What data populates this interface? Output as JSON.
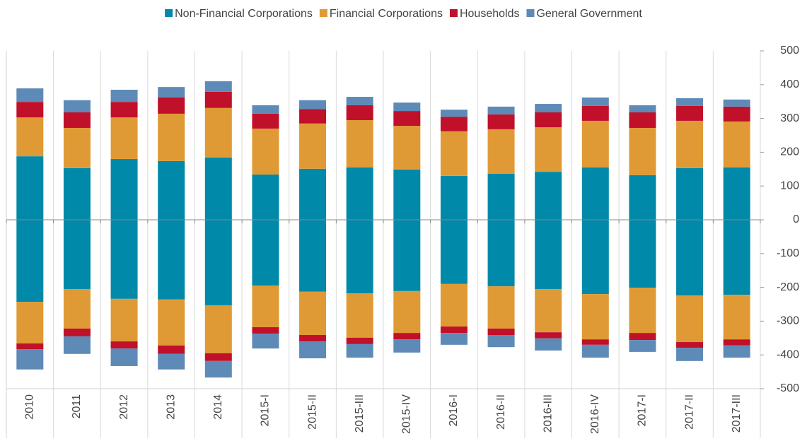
{
  "chart_data": {
    "type": "bar",
    "stacked": true,
    "categories": [
      "2010",
      "2011",
      "2012",
      "2013",
      "2014",
      "2015-I",
      "2015-II",
      "2015-III",
      "2015-IV",
      "2016-I",
      "2016-II",
      "2016-III",
      "2016-IV",
      "2017-I",
      "2017-II",
      "2017-III"
    ],
    "series": [
      {
        "name": "Non-Financial Corporations",
        "color": "#0089a8",
        "values": [
          188,
          153,
          180,
          174,
          184,
          134,
          151,
          155,
          149,
          130,
          136,
          142,
          155,
          132,
          153,
          155
        ],
        "values_neg": [
          -243,
          -205,
          -234,
          -236,
          -253,
          -195,
          -213,
          -218,
          -211,
          -190,
          -197,
          -205,
          -220,
          -201,
          -224,
          -222
        ]
      },
      {
        "name": "Financial Corporations",
        "color": "#e09a35",
        "values": [
          115,
          119,
          123,
          140,
          147,
          136,
          134,
          140,
          129,
          132,
          132,
          132,
          138,
          140,
          140,
          136
        ],
        "values_neg": [
          -123,
          -117,
          -126,
          -136,
          -142,
          -123,
          -128,
          -131,
          -124,
          -126,
          -125,
          -128,
          -134,
          -134,
          -138,
          -132
        ]
      },
      {
        "name": "Households",
        "color": "#c0102a",
        "values": [
          46,
          46,
          46,
          48,
          48,
          44,
          43,
          44,
          44,
          43,
          44,
          44,
          44,
          46,
          44,
          44
        ],
        "values_neg": [
          -17,
          -23,
          -21,
          -25,
          -23,
          -19,
          -19,
          -19,
          -19,
          -19,
          -19,
          -18,
          -16,
          -21,
          -17,
          -18
        ]
      },
      {
        "name": "General Government",
        "color": "#5e8ab8",
        "values": [
          40,
          36,
          36,
          31,
          31,
          25,
          26,
          25,
          25,
          21,
          23,
          25,
          25,
          21,
          23,
          21
        ],
        "values_neg": [
          -60,
          -52,
          -52,
          -46,
          -49,
          -44,
          -50,
          -40,
          -39,
          -35,
          -36,
          -36,
          -38,
          -35,
          -39,
          -36
        ]
      }
    ],
    "ylim": [
      -500,
      500
    ],
    "yticks": [
      -500,
      -400,
      -300,
      -200,
      -100,
      0,
      100,
      200,
      300,
      400,
      500
    ],
    "legend": "top"
  }
}
